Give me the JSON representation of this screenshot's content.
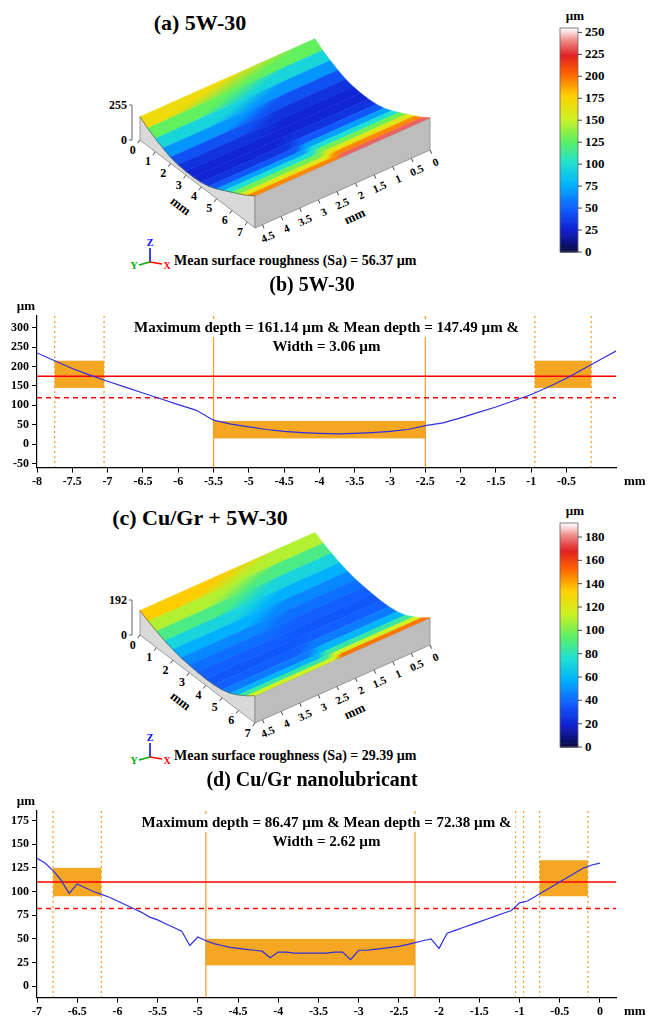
{
  "chart_data": [
    {
      "type": "surface",
      "title": "(a) 5W-30",
      "x_label": "mm",
      "y_label": "mm",
      "xlim": [
        0,
        7.5
      ],
      "xticks": [
        0,
        1,
        2,
        3,
        4,
        5,
        6,
        7
      ],
      "ylim": [
        0,
        4.7
      ],
      "yticks": [
        0,
        0.5,
        1,
        1.5,
        2,
        2.5,
        3,
        3.5,
        4,
        4.5
      ],
      "zlim": [
        0,
        255
      ],
      "zticks": [
        0,
        255
      ],
      "x": [
        0,
        0.5,
        1,
        1.5,
        2,
        2.5,
        3,
        3.5,
        4,
        4.5,
        5,
        5.5,
        6,
        6.5,
        7,
        7.5
      ],
      "height": [
        170,
        128,
        96,
        68,
        45,
        33,
        28,
        28,
        34,
        48,
        72,
        102,
        132,
        162,
        195,
        235
      ],
      "colorbar": {
        "label": "µm",
        "range": [
          0,
          255
        ],
        "ticks": [
          0,
          25,
          50,
          75,
          100,
          125,
          150,
          175,
          200,
          225,
          250
        ]
      },
      "caption": "Mean surface roughness (Sa) = 56.37 µm",
      "axis_triad": {
        "x": "X",
        "y": "Y",
        "z": "Z"
      }
    },
    {
      "type": "line",
      "title": "(b) 5W-30",
      "x_label": "mm",
      "y_label": "µm",
      "grid": false,
      "color": "#3030dd",
      "xlim": [
        -8,
        0.2
      ],
      "xticks": [
        -8,
        -7.5,
        -7,
        -6.5,
        -6,
        -5.5,
        -5,
        -4.5,
        -4,
        -3.5,
        -3,
        -2.5,
        -2,
        -1.5,
        -1,
        -0.5
      ],
      "ylim": [
        -60,
        330
      ],
      "yticks": [
        -50,
        0,
        50,
        100,
        150,
        200,
        250,
        300
      ],
      "x": [
        -8,
        -7.75,
        -7.5,
        -7.25,
        -7,
        -6.75,
        -6.5,
        -6.25,
        -6,
        -5.75,
        -5.5,
        -5.25,
        -5,
        -4.75,
        -4.5,
        -4.25,
        -4,
        -3.75,
        -3.5,
        -3.25,
        -3,
        -2.75,
        -2.5,
        -2.25,
        -2,
        -1.75,
        -1.5,
        -1.25,
        -1,
        -0.75,
        -0.5,
        -0.25,
        0,
        0.2
      ],
      "values": [
        235,
        215,
        195,
        178,
        162,
        147,
        132,
        117,
        102,
        88,
        62,
        52,
        45,
        38,
        33,
        30,
        28,
        27,
        28,
        30,
        33,
        38,
        48,
        55,
        68,
        82,
        96,
        112,
        128,
        148,
        170,
        195,
        220,
        240
      ],
      "annotation": [
        "Maximum depth = 161.14 µm & Mean depth = 147.49 µm &",
        "Width = 3.06 µm"
      ],
      "bands": [
        {
          "x": [
            -7.75,
            -7.05
          ],
          "y": [
            145,
            215
          ],
          "color": "#f5a623"
        },
        {
          "x": [
            -5.5,
            -2.5
          ],
          "y": [
            15,
            60
          ],
          "color": "#f5a623"
        },
        {
          "x": [
            -0.95,
            -0.15
          ],
          "y": [
            145,
            215
          ],
          "color": "#f5a623"
        }
      ],
      "hlines": [
        {
          "y": 175,
          "line_style": "solid",
          "color": "#ff0000"
        },
        {
          "y": 120,
          "line_style": "dashed",
          "color": "#ff0000"
        }
      ],
      "vlines": [
        {
          "x": -7.75,
          "line_style": "dotted",
          "color": "#f0a030"
        },
        {
          "x": -7.05,
          "line_style": "dotted",
          "color": "#f0a030"
        },
        {
          "x": -5.5,
          "line_style": "solid",
          "color": "#f0a030"
        },
        {
          "x": -2.5,
          "line_style": "solid",
          "color": "#f0a030"
        },
        {
          "x": -0.95,
          "line_style": "dotted",
          "color": "#f0a030"
        },
        {
          "x": -0.15,
          "line_style": "dotted",
          "color": "#f0a030"
        }
      ]
    },
    {
      "type": "surface",
      "title": "(c) Cu/Gr + 5W-30",
      "x_label": "mm",
      "y_label": "mm",
      "xlim": [
        0,
        7
      ],
      "xticks": [
        0,
        1,
        2,
        3,
        4,
        5,
        6,
        7
      ],
      "ylim": [
        0,
        4.7
      ],
      "yticks": [
        0,
        0.5,
        1,
        1.5,
        2,
        2.5,
        3,
        3.5,
        4,
        4.5
      ],
      "zlim": [
        0,
        192
      ],
      "zticks": [
        0,
        192
      ],
      "x": [
        0,
        0.5,
        1,
        1.5,
        2,
        2.5,
        3,
        3.5,
        4,
        4.5,
        5,
        5.5,
        6,
        6.5,
        7
      ],
      "height": [
        135,
        110,
        90,
        72,
        58,
        48,
        42,
        38,
        36,
        38,
        45,
        60,
        85,
        115,
        150
      ],
      "colorbar": {
        "label": "µm",
        "range": [
          0,
          192
        ],
        "ticks": [
          0,
          20,
          40,
          60,
          80,
          100,
          120,
          140,
          160,
          180
        ]
      },
      "caption": "Mean surface roughness (Sa) = 29.39 µm",
      "axis_triad": {
        "x": "X",
        "y": "Y",
        "z": "Z"
      }
    },
    {
      "type": "line",
      "title": "(d) Cu/Gr nanolubricant",
      "x_label": "mm",
      "y_label": "µm",
      "grid": false,
      "color": "#3030dd",
      "xlim": [
        -7,
        0.2
      ],
      "xticks": [
        -7,
        -6.5,
        -6,
        -5.5,
        -5,
        -4.5,
        -4,
        -3.5,
        -3,
        -2.5,
        -2,
        -1.5,
        -1,
        -0.5,
        0
      ],
      "ylim": [
        -12,
        185
      ],
      "yticks": [
        0,
        25,
        50,
        75,
        100,
        125,
        150,
        175
      ],
      "x": [
        -7,
        -6.9,
        -6.8,
        -6.7,
        -6.6,
        -6.5,
        -6.4,
        -6.3,
        -6.2,
        -6.1,
        -6,
        -5.9,
        -5.8,
        -5.7,
        -5.6,
        -5.5,
        -5.4,
        -5.3,
        -5.2,
        -5.1,
        -5,
        -4.9,
        -4.8,
        -4.7,
        -4.6,
        -4.5,
        -4.4,
        -4.3,
        -4.2,
        -4.1,
        -4,
        -3.9,
        -3.8,
        -3.7,
        -3.6,
        -3.5,
        -3.4,
        -3.3,
        -3.2,
        -3.1,
        -3,
        -2.9,
        -2.8,
        -2.7,
        -2.6,
        -2.5,
        -2.4,
        -2.3,
        -2.2,
        -2.1,
        -2,
        -1.9,
        -1.8,
        -1.7,
        -1.6,
        -1.5,
        -1.4,
        -1.3,
        -1.2,
        -1.1,
        -1,
        -0.9,
        -0.8,
        -0.7,
        -0.6,
        -0.5,
        -0.4,
        -0.3,
        -0.2,
        -0.1,
        0
      ],
      "values": [
        135,
        130,
        122,
        112,
        98,
        108,
        104,
        100,
        97,
        94,
        90,
        86,
        82,
        78,
        73,
        70,
        66,
        62,
        58,
        43,
        52,
        48,
        45,
        43,
        41,
        40,
        39,
        38,
        37,
        30,
        36,
        36,
        35,
        35,
        35,
        35,
        35,
        36,
        36,
        28,
        38,
        38,
        39,
        40,
        41,
        42,
        44,
        46,
        48,
        50,
        40,
        56,
        59,
        62,
        65,
        68,
        71,
        74,
        77,
        80,
        88,
        90,
        95,
        100,
        105,
        110,
        115,
        120,
        125,
        128,
        130
      ],
      "annotation": [
        "Maximum depth = 86.47 µm & Mean depth = 72.38 µm &",
        "Width = 2.62 µm"
      ],
      "bands": [
        {
          "x": [
            -6.8,
            -6.2
          ],
          "y": [
            95,
            125
          ],
          "color": "#f5a623"
        },
        {
          "x": [
            -4.9,
            -2.3
          ],
          "y": [
            22,
            50
          ],
          "color": "#f5a623"
        },
        {
          "x": [
            -0.75,
            -0.15
          ],
          "y": [
            95,
            133
          ],
          "color": "#f5a623"
        }
      ],
      "hlines": [
        {
          "y": 110,
          "line_style": "solid",
          "color": "#ff0000"
        },
        {
          "y": 82,
          "line_style": "dashed",
          "color": "#ff0000"
        }
      ],
      "vlines": [
        {
          "x": -6.8,
          "line_style": "dotted",
          "color": "#f0a030"
        },
        {
          "x": -6.2,
          "line_style": "dotted",
          "color": "#f0a030"
        },
        {
          "x": -4.9,
          "line_style": "solid",
          "color": "#f0a030"
        },
        {
          "x": -2.3,
          "line_style": "solid",
          "color": "#f0a030"
        },
        {
          "x": -1.05,
          "line_style": "dotted",
          "color": "#f0a030"
        },
        {
          "x": -0.95,
          "line_style": "dotted",
          "color": "#f0a030"
        },
        {
          "x": -0.75,
          "line_style": "dotted",
          "color": "#f0a030"
        },
        {
          "x": -0.15,
          "line_style": "dotted",
          "color": "#f0a030"
        }
      ]
    }
  ]
}
